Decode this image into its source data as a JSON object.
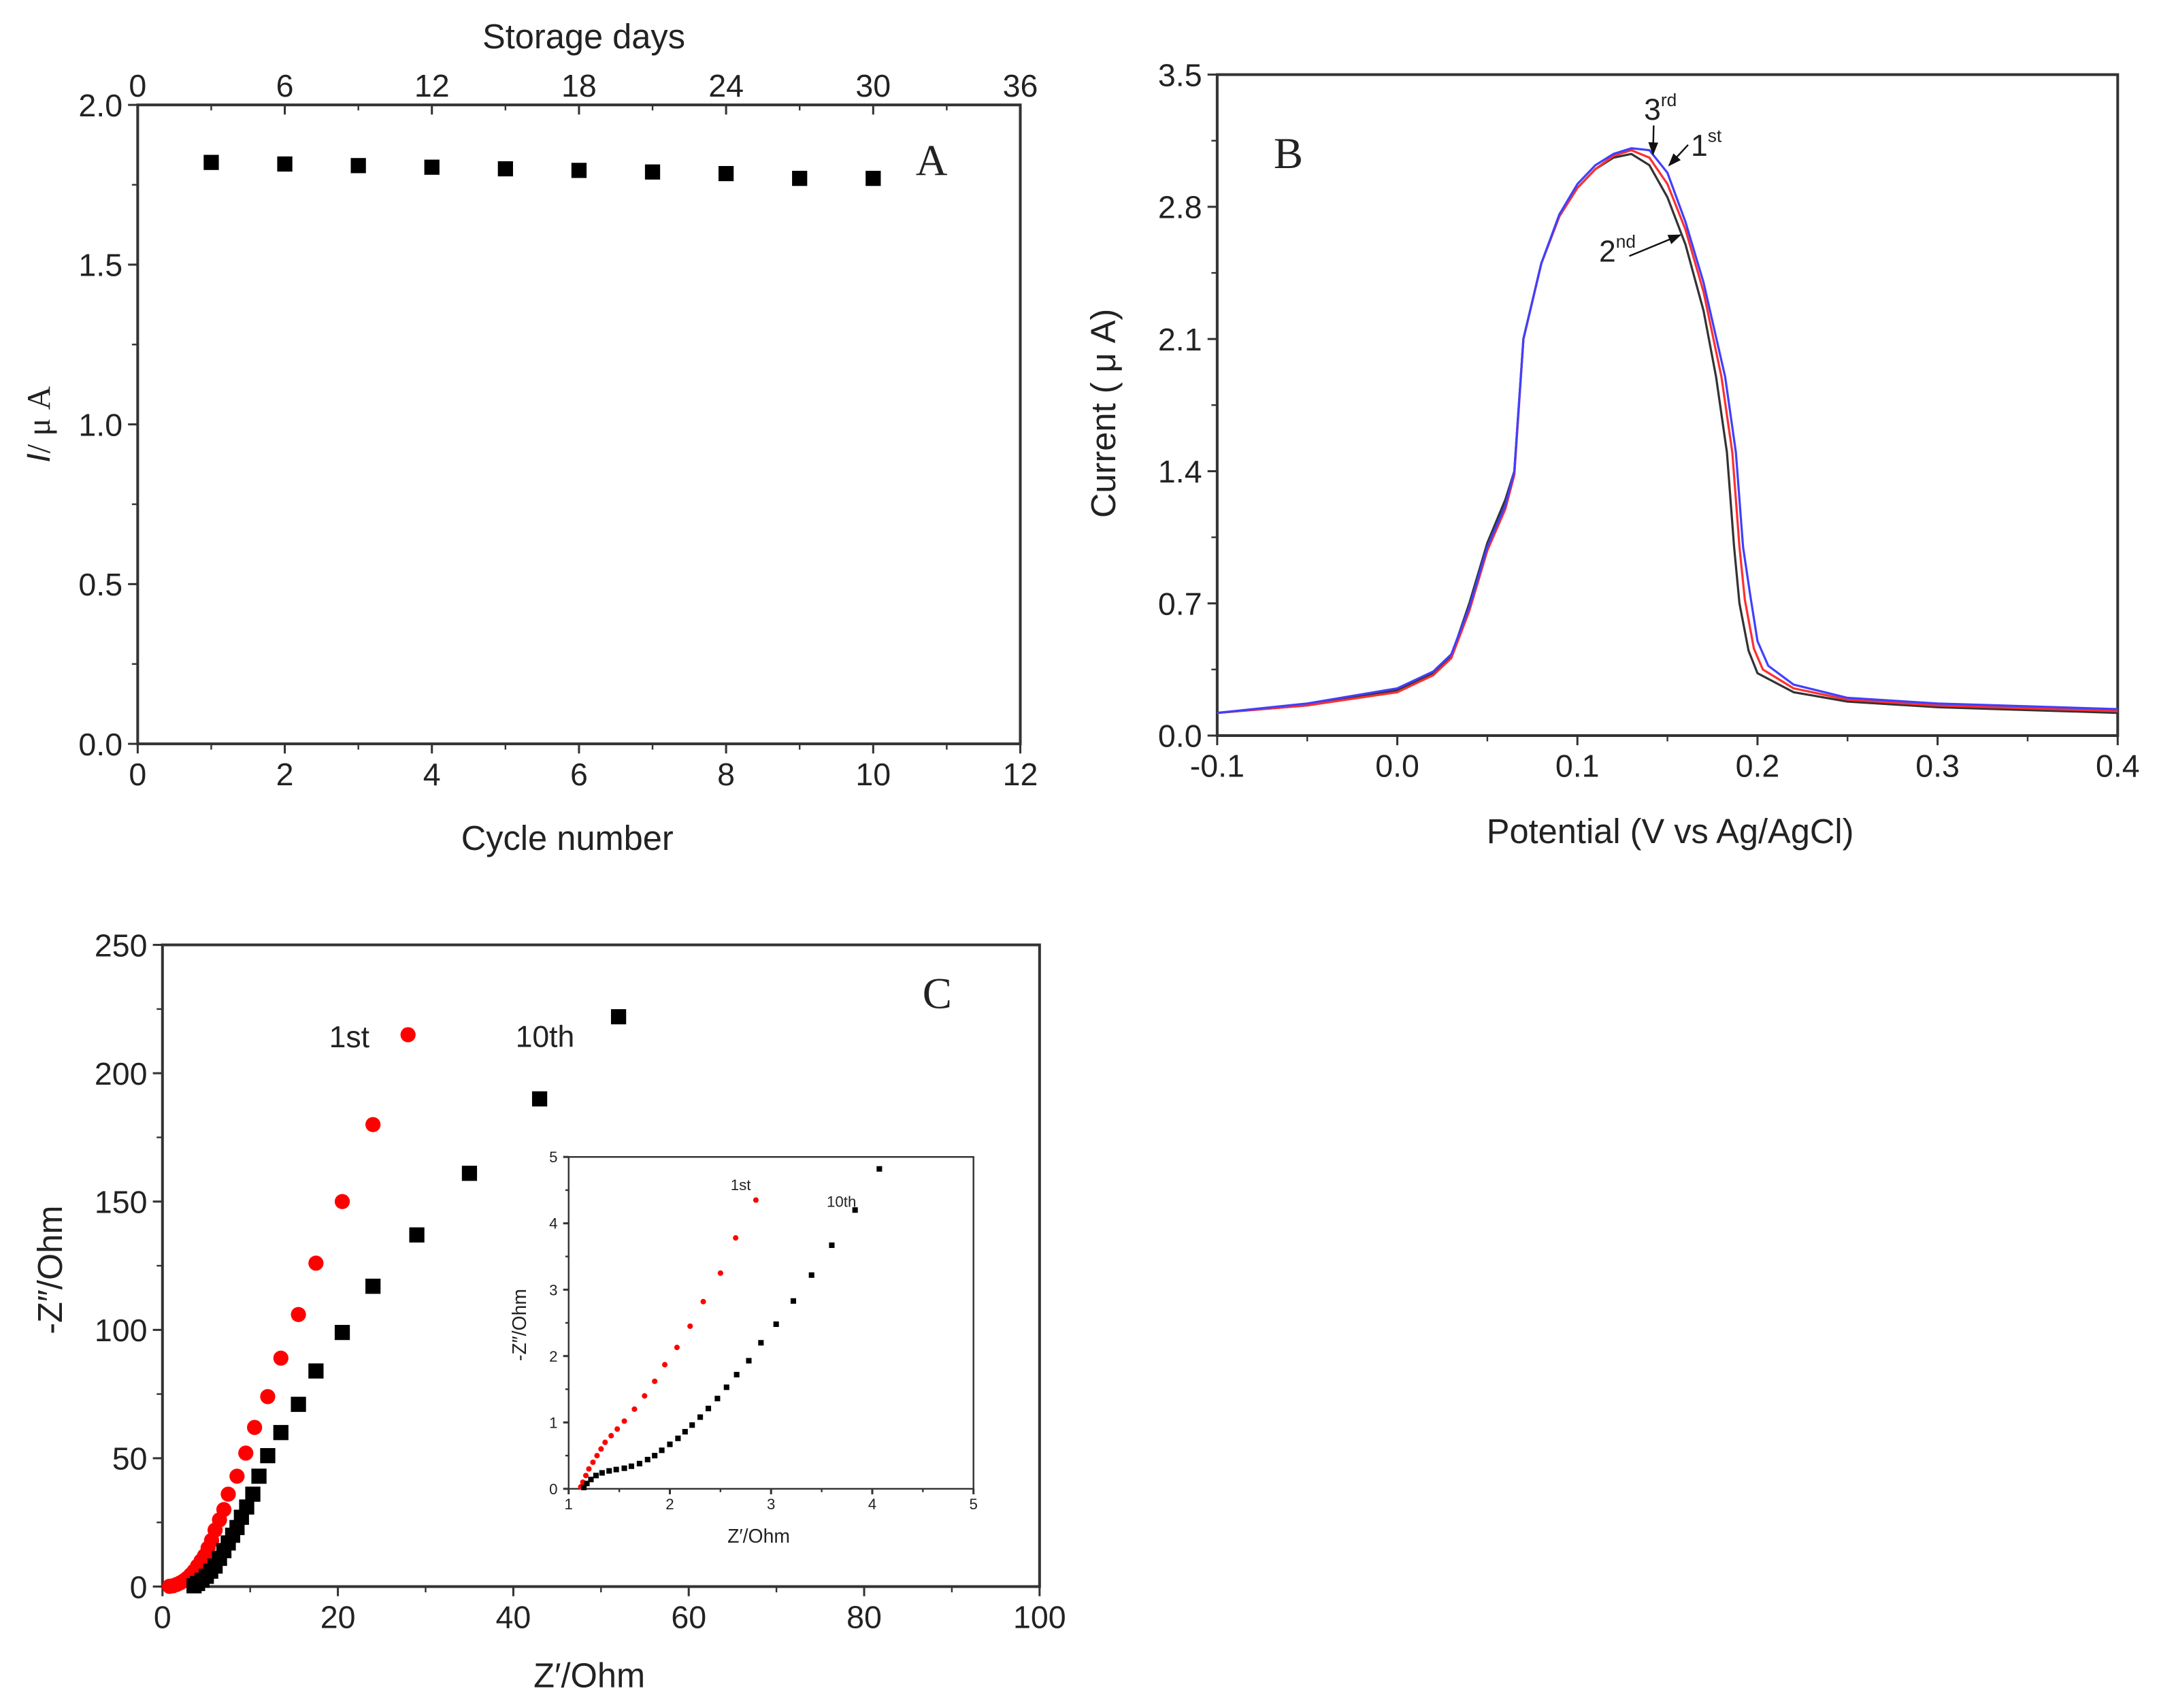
{
  "chart_data": [
    {
      "panel": "A",
      "type": "scatter",
      "panel_label": "A",
      "xlabel": "Cycle number",
      "ylabel_italic": "I",
      "ylabel_rest": "/ μ A",
      "top_xlabel": "Storage days",
      "xlim": [
        0,
        12
      ],
      "xticks": [
        0,
        2,
        4,
        6,
        8,
        10,
        12
      ],
      "xminor": 1,
      "top_xlim": [
        0,
        36
      ],
      "top_xticks": [
        0,
        6,
        12,
        18,
        24,
        30,
        36
      ],
      "top_xminor": 3,
      "ylim": [
        0,
        2.0
      ],
      "yticks": [
        "0.0",
        "0.5",
        "1.0",
        "1.5",
        "2.0"
      ],
      "yminor": 0.25,
      "series": [
        {
          "name": "Current",
          "marker": "square",
          "color": "#000000",
          "x": [
            1,
            2,
            3,
            4,
            5,
            6,
            7,
            8,
            9,
            10
          ],
          "y": [
            1.82,
            1.815,
            1.81,
            1.805,
            1.8,
            1.795,
            1.79,
            1.785,
            1.77,
            1.77
          ]
        }
      ]
    },
    {
      "panel": "B",
      "type": "line",
      "panel_label": "B",
      "xlabel": "Potential (V vs Ag/AgCl)",
      "ylabel": "Current ( μ A)",
      "xlim": [
        -0.1,
        0.4
      ],
      "xticks": [
        "-0.1",
        "0.0",
        "0.1",
        "0.2",
        "0.3",
        "0.4"
      ],
      "xminor": 0.05,
      "ylim": [
        0,
        3.5
      ],
      "yticks": [
        "0.0",
        "0.7",
        "1.4",
        "2.1",
        "2.8",
        "3.5"
      ],
      "yminor": 0.35,
      "series": [
        {
          "name": "black",
          "color": "#333333",
          "x": [
            -0.1,
            -0.05,
            0,
            0.02,
            0.03,
            0.04,
            0.05,
            0.06,
            0.065,
            0.07,
            0.08,
            0.09,
            0.1,
            0.11,
            0.12,
            0.13,
            0.14,
            0.15,
            0.16,
            0.17,
            0.177,
            0.183,
            0.187,
            0.19,
            0.195,
            0.2,
            0.22,
            0.25,
            0.3,
            0.4
          ],
          "y": [
            0.12,
            0.16,
            0.24,
            0.33,
            0.42,
            0.7,
            1.02,
            1.25,
            1.4,
            2.1,
            2.5,
            2.75,
            2.9,
            3.0,
            3.06,
            3.08,
            3.02,
            2.85,
            2.6,
            2.25,
            1.9,
            1.5,
            1.0,
            0.7,
            0.45,
            0.33,
            0.23,
            0.18,
            0.15,
            0.12
          ]
        },
        {
          "name": "red",
          "color": "#ff3030",
          "x": [
            -0.1,
            -0.05,
            0,
            0.02,
            0.03,
            0.04,
            0.05,
            0.06,
            0.065,
            0.07,
            0.08,
            0.09,
            0.1,
            0.11,
            0.12,
            0.13,
            0.14,
            0.15,
            0.16,
            0.17,
            0.18,
            0.186,
            0.19,
            0.193,
            0.198,
            0.203,
            0.22,
            0.25,
            0.3,
            0.4
          ],
          "y": [
            0.12,
            0.16,
            0.23,
            0.32,
            0.41,
            0.66,
            0.98,
            1.2,
            1.38,
            2.1,
            2.5,
            2.75,
            2.9,
            3.0,
            3.07,
            3.1,
            3.06,
            2.92,
            2.68,
            2.35,
            1.9,
            1.5,
            1.0,
            0.72,
            0.46,
            0.35,
            0.25,
            0.19,
            0.16,
            0.13
          ]
        },
        {
          "name": "blue",
          "color": "#4040ff",
          "x": [
            -0.1,
            -0.05,
            0,
            0.02,
            0.03,
            0.04,
            0.05,
            0.06,
            0.065,
            0.07,
            0.08,
            0.09,
            0.1,
            0.11,
            0.12,
            0.13,
            0.14,
            0.15,
            0.16,
            0.17,
            0.182,
            0.188,
            0.192,
            0.196,
            0.2,
            0.206,
            0.22,
            0.25,
            0.3,
            0.4
          ],
          "y": [
            0.12,
            0.17,
            0.25,
            0.34,
            0.43,
            0.68,
            1.0,
            1.22,
            1.4,
            2.1,
            2.5,
            2.76,
            2.92,
            3.02,
            3.08,
            3.11,
            3.1,
            2.98,
            2.72,
            2.4,
            1.9,
            1.5,
            1.0,
            0.74,
            0.5,
            0.37,
            0.27,
            0.2,
            0.17,
            0.14
          ]
        }
      ],
      "annotations": [
        {
          "text": "3",
          "sup": "rd",
          "tx": 0.137,
          "ty": 3.26,
          "ax": 0.142,
          "ay": 3.08
        },
        {
          "text": "1",
          "sup": "st",
          "tx": 0.163,
          "ty": 3.07,
          "ax": 0.151,
          "ay": 3.02
        },
        {
          "text": "2",
          "sup": "nd",
          "tx": 0.112,
          "ty": 2.51,
          "ax": 0.157,
          "ay": 2.65
        }
      ]
    },
    {
      "panel": "C",
      "type": "scatter",
      "panel_label": "C",
      "xlabel": "Z′/Ohm",
      "ylabel": "-Z″/Ohm",
      "xlim": [
        0,
        100
      ],
      "xticks": [
        0,
        20,
        40,
        60,
        80,
        100
      ],
      "xminor": 10,
      "ylim": [
        0,
        250
      ],
      "yticks": [
        0,
        50,
        100,
        150,
        200,
        250
      ],
      "yminor": 25,
      "legend": [
        {
          "label": "1st",
          "marker": "circle",
          "color": "#ff0000",
          "lx": 28,
          "ly": 215
        },
        {
          "label": "10th",
          "marker": "square",
          "color": "#000000",
          "lx": 52,
          "ly": 222
        }
      ],
      "series": [
        {
          "name": "1st",
          "marker": "circle",
          "color": "#ff0000",
          "x": [
            24,
            20.5,
            17.5,
            15.5,
            13.5,
            12,
            10.5,
            9.5,
            8.5,
            7.5,
            7,
            6.5,
            6,
            5.6,
            5.2,
            4.8,
            4.4,
            4,
            3.6,
            3.2,
            2.8,
            2.4,
            2,
            1.6,
            1.2,
            0.8
          ],
          "y": [
            180,
            150,
            126,
            106,
            89,
            74,
            62,
            52,
            43,
            36,
            30,
            26,
            22,
            18,
            15,
            12,
            10,
            8,
            6,
            4.5,
            3.2,
            2.2,
            1.4,
            0.8,
            0.3,
            0.1
          ]
        },
        {
          "name": "10th",
          "marker": "square",
          "color": "#000000",
          "x": [
            43,
            35,
            29,
            24,
            20.5,
            17.5,
            15.5,
            13.5,
            12,
            11,
            10.3,
            9.6,
            9,
            8.5,
            8,
            7.5,
            7,
            6.5,
            6,
            5.5,
            5,
            4.5,
            4,
            3.6
          ],
          "y": [
            190,
            161,
            137,
            117,
            99,
            84,
            71,
            60,
            51,
            43,
            36,
            31,
            27,
            23,
            20,
            17,
            14,
            11,
            8,
            6,
            4,
            2.5,
            1.2,
            0.3
          ]
        }
      ],
      "inset": {
        "type": "scatter",
        "xlabel": "Z′/Ohm",
        "ylabel": "-Z″/Ohm",
        "xlim": [
          1,
          5
        ],
        "xticks": [
          1,
          2,
          3,
          4,
          5
        ],
        "xminor": 0.5,
        "ylim": [
          0,
          5
        ],
        "yticks": [
          0,
          1,
          2,
          3,
          4,
          5
        ],
        "yminor": 0.5,
        "labels": [
          {
            "text": "1st",
            "lx": 2.6,
            "ly": 4.5
          },
          {
            "text": "10th",
            "lx": 3.55,
            "ly": 4.25
          }
        ],
        "series": [
          {
            "name": "1st",
            "color": "#ff0000",
            "x": [
              2.85,
              2.65,
              2.5,
              2.33,
              2.2,
              2.07,
              1.95,
              1.85,
              1.75,
              1.65,
              1.55,
              1.48,
              1.42,
              1.36,
              1.32,
              1.28,
              1.24,
              1.2,
              1.17,
              1.14,
              1.12
            ],
            "y": [
              4.35,
              3.78,
              3.25,
              2.82,
              2.45,
              2.13,
              1.87,
              1.62,
              1.4,
              1.2,
              1.02,
              0.9,
              0.8,
              0.7,
              0.6,
              0.5,
              0.4,
              0.3,
              0.2,
              0.1,
              0.03
            ]
          },
          {
            "name": "10th",
            "color": "#000000",
            "x": [
              4.07,
              3.83,
              3.6,
              3.4,
              3.22,
              3.05,
              2.9,
              2.78,
              2.66,
              2.56,
              2.47,
              2.38,
              2.3,
              2.22,
              2.15,
              2.08,
              2.0,
              1.92,
              1.85,
              1.78,
              1.7,
              1.62,
              1.55,
              1.47,
              1.4,
              1.33,
              1.27,
              1.22,
              1.18,
              1.15
            ],
            "y": [
              4.82,
              4.2,
              3.67,
              3.22,
              2.83,
              2.48,
              2.2,
              1.93,
              1.72,
              1.53,
              1.36,
              1.21,
              1.08,
              0.96,
              0.86,
              0.76,
              0.67,
              0.58,
              0.5,
              0.44,
              0.38,
              0.34,
              0.31,
              0.29,
              0.27,
              0.24,
              0.2,
              0.14,
              0.08,
              0.02
            ]
          }
        ]
      }
    }
  ]
}
